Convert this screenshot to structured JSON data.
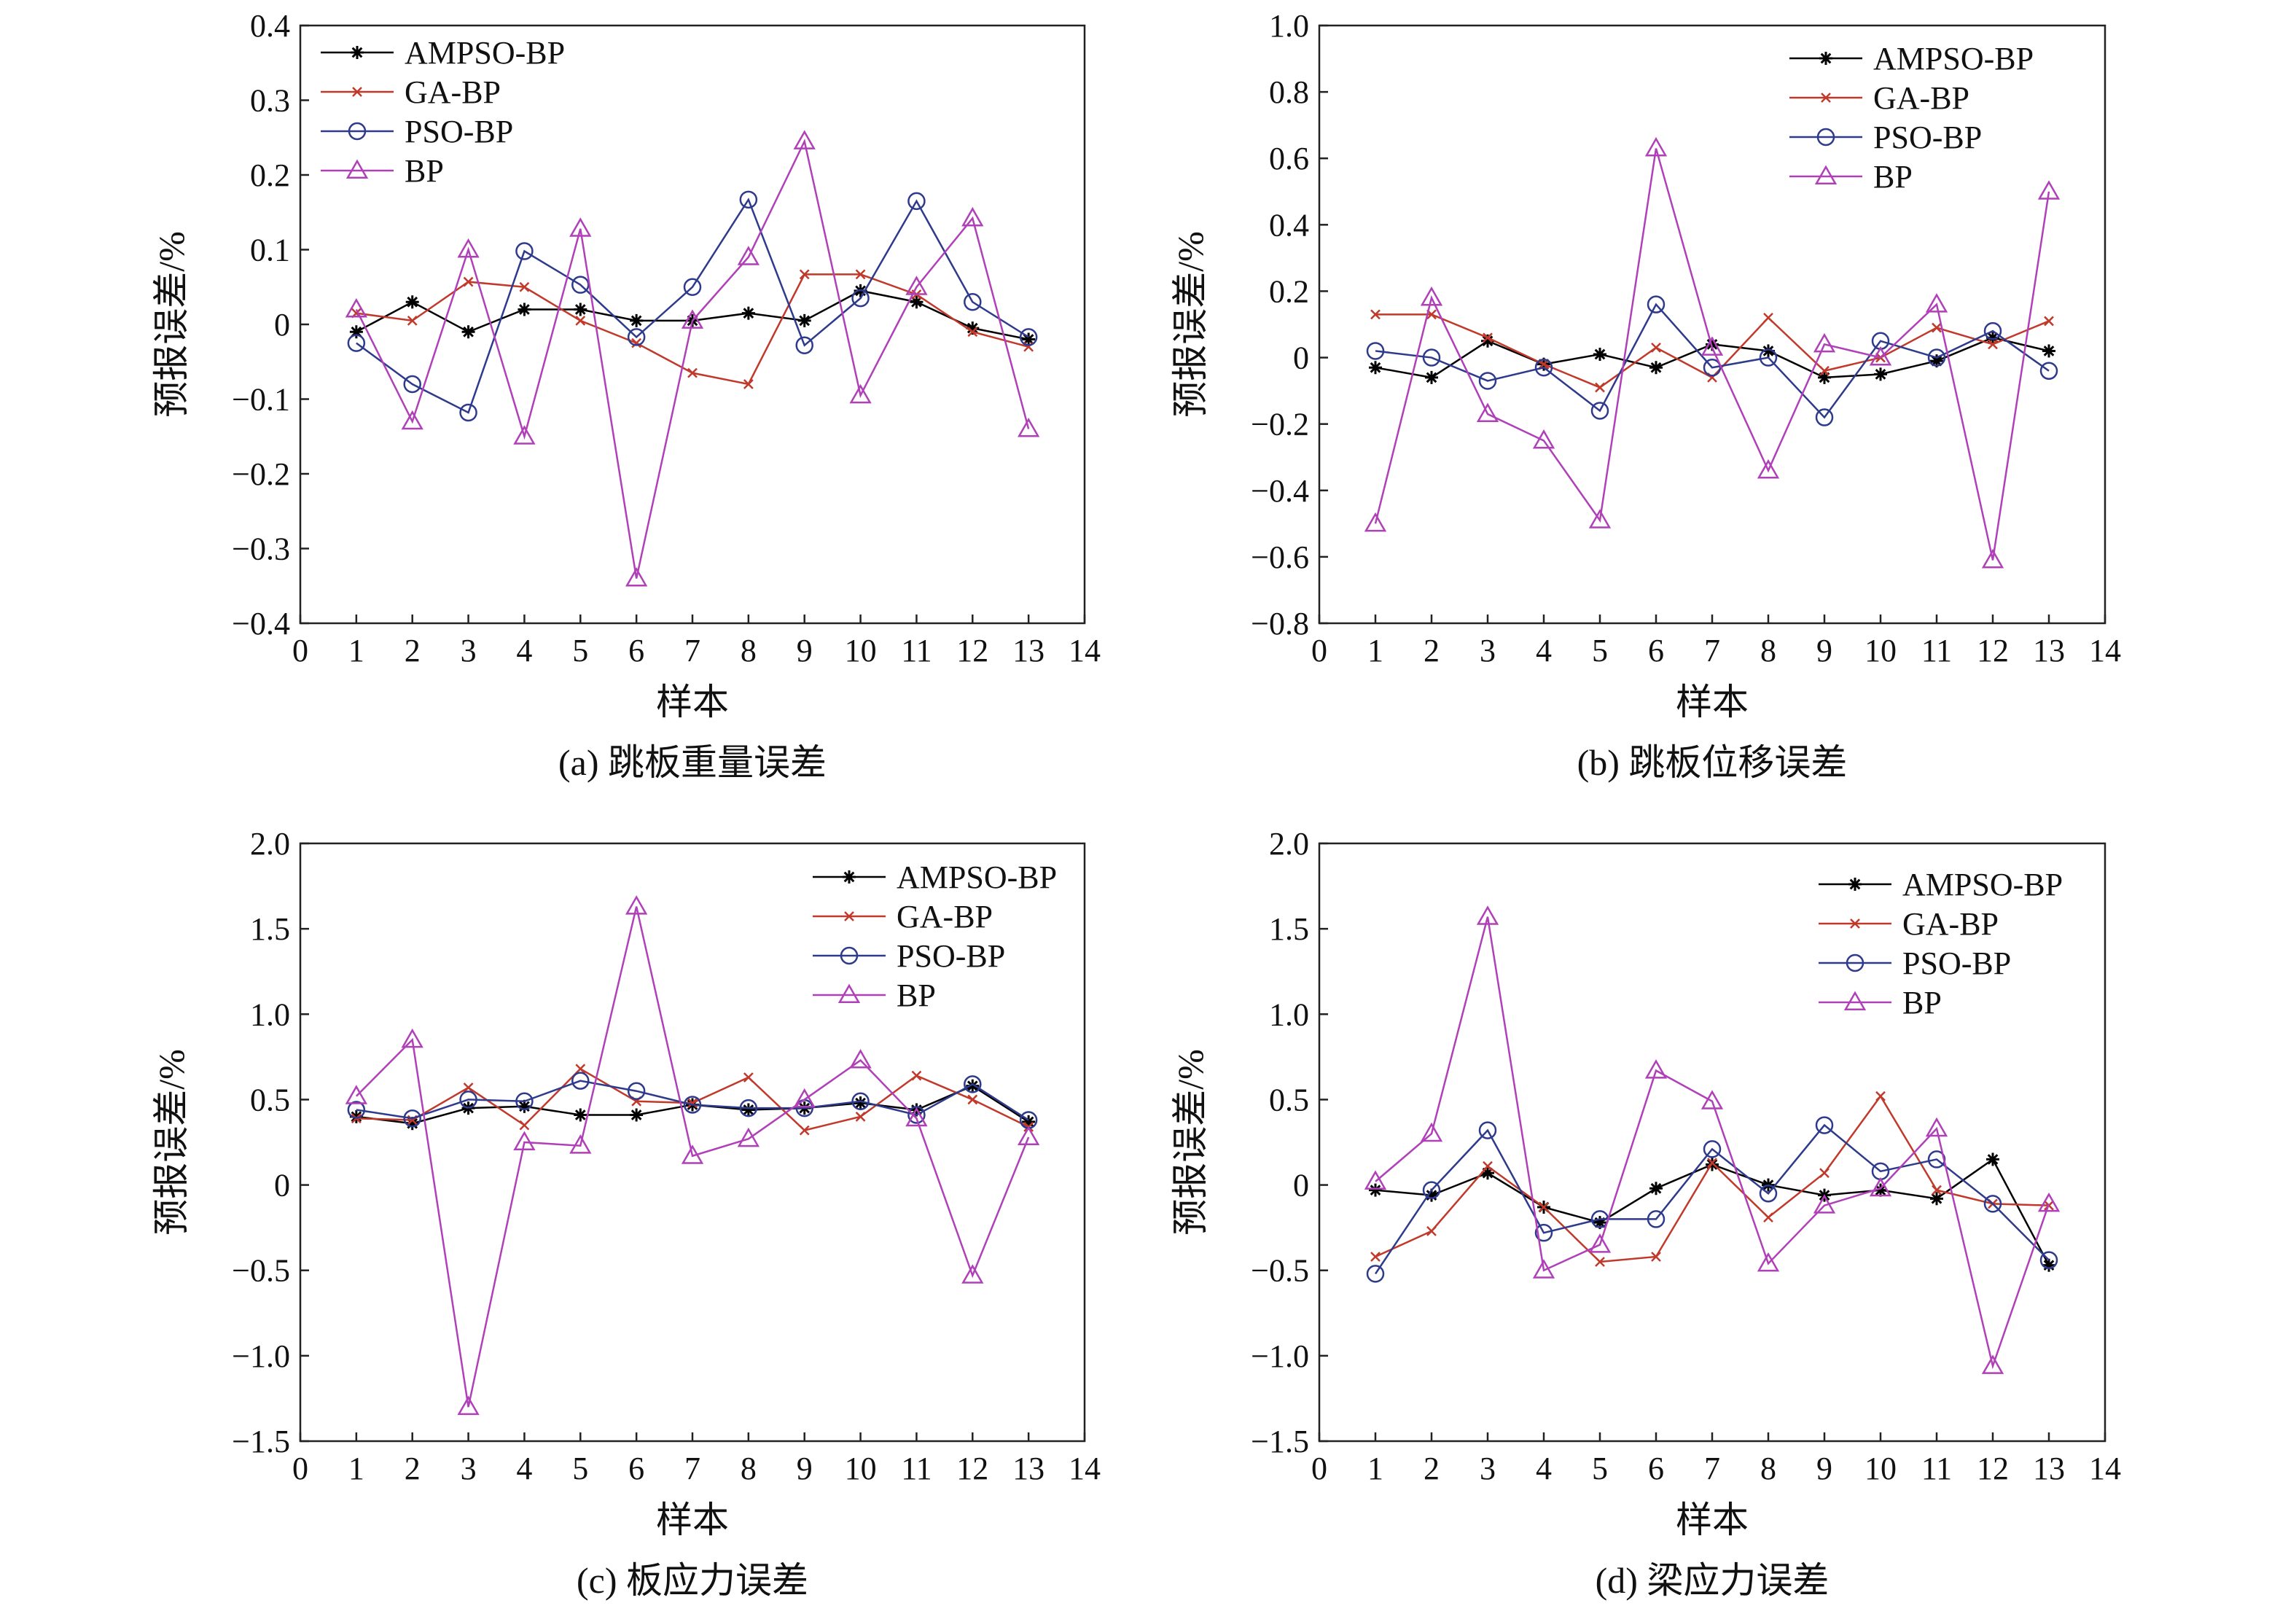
{
  "series_styles": [
    {
      "name": "AMPSO-BP",
      "color": "#000000",
      "marker": "star"
    },
    {
      "name": "GA-BP",
      "color": "#c0392b",
      "marker": "x"
    },
    {
      "name": "PSO-BP",
      "color": "#2e3a8c",
      "marker": "circle"
    },
    {
      "name": "BP",
      "color": "#b040b8",
      "marker": "triangle"
    }
  ],
  "chart_data": [
    {
      "type": "line",
      "title": "(a) 跳板重量误差",
      "xlabel": "样本",
      "ylabel": "预报误差/%",
      "xlim": [
        0,
        14
      ],
      "ylim": [
        -0.4,
        0.4
      ],
      "xticks": [
        "0",
        "1",
        "2",
        "3",
        "4",
        "5",
        "6",
        "7",
        "8",
        "9",
        "10",
        "11",
        "12",
        "13",
        "14"
      ],
      "yticks": [
        "−0.4",
        "−0.3",
        "−0.2",
        "−0.1",
        "0",
        "0.1",
        "0.2",
        "0.3",
        "0.4"
      ],
      "legend_position": "top-left",
      "grid": false,
      "x": [
        1,
        2,
        3,
        4,
        5,
        6,
        7,
        8,
        9,
        10,
        11,
        12,
        13
      ],
      "series": [
        {
          "name": "AMPSO-BP",
          "values": [
            -0.01,
            0.03,
            -0.01,
            0.02,
            0.02,
            0.005,
            0.005,
            0.015,
            0.005,
            0.045,
            0.03,
            -0.005,
            -0.02
          ]
        },
        {
          "name": "GA-BP",
          "values": [
            0.015,
            0.005,
            0.057,
            0.05,
            0.005,
            -0.025,
            -0.065,
            -0.08,
            0.067,
            0.067,
            0.04,
            -0.01,
            -0.03
          ]
        },
        {
          "name": "PSO-BP",
          "values": [
            -0.025,
            -0.08,
            -0.118,
            0.098,
            0.053,
            -0.017,
            0.05,
            0.167,
            -0.028,
            0.035,
            0.165,
            0.03,
            -0.017
          ]
        },
        {
          "name": "BP",
          "values": [
            0.02,
            -0.13,
            0.1,
            -0.15,
            0.128,
            -0.34,
            0.005,
            0.09,
            0.245,
            -0.095,
            0.05,
            0.142,
            -0.14
          ]
        }
      ]
    },
    {
      "type": "line",
      "title": "(b) 跳板位移误差",
      "xlabel": "样本",
      "ylabel": "预报误差/%",
      "xlim": [
        0,
        14
      ],
      "ylim": [
        -0.8,
        1.0
      ],
      "xticks": [
        "0",
        "1",
        "2",
        "3",
        "4",
        "5",
        "6",
        "7",
        "8",
        "9",
        "10",
        "11",
        "12",
        "13",
        "14"
      ],
      "yticks": [
        "−0.8",
        "−0.6",
        "−0.4",
        "−0.2",
        "0",
        "0.2",
        "0.4",
        "0.6",
        "0.8",
        "1.0"
      ],
      "legend_position": "top-right",
      "grid": false,
      "x": [
        1,
        2,
        3,
        4,
        5,
        6,
        7,
        8,
        9,
        10,
        11,
        12,
        13
      ],
      "series": [
        {
          "name": "AMPSO-BP",
          "values": [
            -0.03,
            -0.06,
            0.05,
            -0.02,
            0.01,
            -0.03,
            0.04,
            0.02,
            -0.06,
            -0.05,
            -0.01,
            0.06,
            0.02
          ]
        },
        {
          "name": "GA-BP",
          "values": [
            0.13,
            0.13,
            0.06,
            -0.02,
            -0.09,
            0.03,
            -0.06,
            0.12,
            -0.04,
            0.0,
            0.09,
            0.04,
            0.11
          ]
        },
        {
          "name": "PSO-BP",
          "values": [
            0.02,
            0.0,
            -0.07,
            -0.03,
            -0.16,
            0.16,
            -0.03,
            0.0,
            -0.18,
            0.05,
            0.0,
            0.08,
            -0.04
          ]
        },
        {
          "name": "BP",
          "values": [
            -0.5,
            0.18,
            -0.17,
            -0.25,
            -0.49,
            0.63,
            0.03,
            -0.34,
            0.04,
            0.0,
            0.16,
            -0.61,
            0.5
          ]
        }
      ]
    },
    {
      "type": "line",
      "title": "(c) 板应力误差",
      "xlabel": "样本",
      "ylabel": "预报误差/%",
      "xlim": [
        0,
        14
      ],
      "ylim": [
        -1.5,
        2.0
      ],
      "xticks": [
        "0",
        "1",
        "2",
        "3",
        "4",
        "5",
        "6",
        "7",
        "8",
        "9",
        "10",
        "11",
        "12",
        "13",
        "14"
      ],
      "yticks": [
        "−1.5",
        "−1.0",
        "−0.5",
        "0",
        "0.5",
        "1.0",
        "1.5",
        "2.0"
      ],
      "legend_position": "top-right",
      "grid": false,
      "x": [
        1,
        2,
        3,
        4,
        5,
        6,
        7,
        8,
        9,
        10,
        11,
        12,
        13
      ],
      "series": [
        {
          "name": "AMPSO-BP",
          "values": [
            0.4,
            0.36,
            0.45,
            0.46,
            0.41,
            0.41,
            0.47,
            0.44,
            0.45,
            0.48,
            0.44,
            0.58,
            0.37
          ]
        },
        {
          "name": "GA-BP",
          "values": [
            0.39,
            0.38,
            0.57,
            0.35,
            0.68,
            0.49,
            0.48,
            0.63,
            0.32,
            0.4,
            0.64,
            0.5,
            0.34
          ]
        },
        {
          "name": "PSO-BP",
          "values": [
            0.44,
            0.39,
            0.5,
            0.49,
            0.61,
            0.55,
            0.47,
            0.45,
            0.45,
            0.49,
            0.41,
            0.59,
            0.38
          ]
        },
        {
          "name": "BP",
          "values": [
            0.52,
            0.85,
            -1.3,
            0.25,
            0.23,
            1.63,
            0.17,
            0.27,
            0.5,
            0.73,
            0.39,
            -0.53,
            0.28
          ]
        }
      ]
    },
    {
      "type": "line",
      "title": "(d) 梁应力误差",
      "xlabel": "样本",
      "ylabel": "预报误差/%",
      "xlim": [
        0,
        14
      ],
      "ylim": [
        -1.5,
        2.0
      ],
      "xticks": [
        "0",
        "1",
        "2",
        "3",
        "4",
        "5",
        "6",
        "7",
        "8",
        "9",
        "10",
        "11",
        "12",
        "13",
        "14"
      ],
      "yticks": [
        "−1.5",
        "−1.0",
        "−0.5",
        "0",
        "0.5",
        "1.0",
        "1.5",
        "2.0"
      ],
      "legend_position": "top-right",
      "grid": false,
      "x": [
        1,
        2,
        3,
        4,
        5,
        6,
        7,
        8,
        9,
        10,
        11,
        12,
        13
      ],
      "series": [
        {
          "name": "AMPSO-BP",
          "values": [
            -0.03,
            -0.06,
            0.07,
            -0.13,
            -0.22,
            -0.02,
            0.12,
            0.0,
            -0.06,
            -0.03,
            -0.08,
            0.15,
            -0.47
          ]
        },
        {
          "name": "GA-BP",
          "values": [
            -0.42,
            -0.27,
            0.11,
            -0.13,
            -0.45,
            -0.42,
            0.13,
            -0.19,
            0.07,
            0.52,
            -0.03,
            -0.11,
            -0.12
          ]
        },
        {
          "name": "PSO-BP",
          "values": [
            -0.52,
            -0.03,
            0.32,
            -0.28,
            -0.2,
            -0.2,
            0.21,
            -0.05,
            0.35,
            0.08,
            0.15,
            -0.11,
            -0.44
          ]
        },
        {
          "name": "BP",
          "values": [
            0.02,
            0.3,
            1.57,
            -0.5,
            -0.35,
            0.67,
            0.49,
            -0.46,
            -0.12,
            -0.02,
            0.33,
            -1.06,
            -0.11
          ]
        }
      ]
    }
  ]
}
